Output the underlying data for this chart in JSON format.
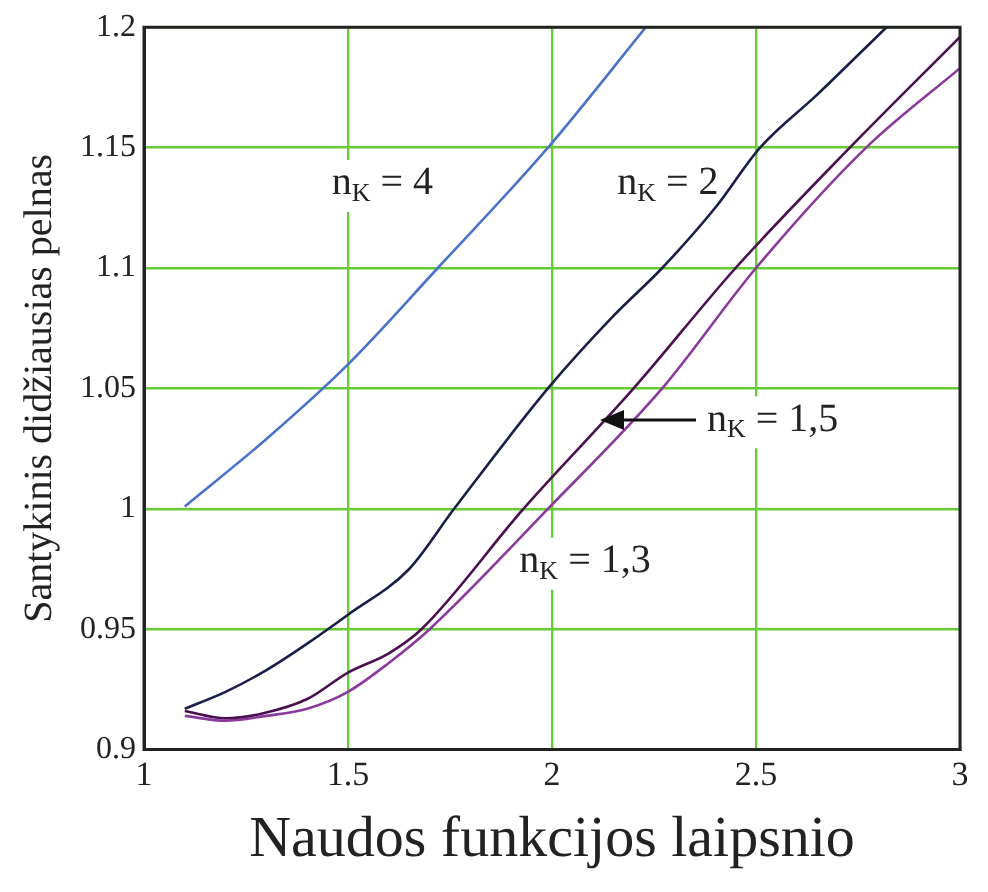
{
  "chart_data": {
    "type": "line",
    "xlabel": "Naudos funkcijos laipsnio",
    "ylabel": "Santykinis didžiausias pelnas",
    "xlim": [
      1,
      3
    ],
    "xticks": [
      1,
      1.5,
      2,
      2.5,
      3
    ],
    "ylim": [
      0.9,
      1.2
    ],
    "yticks": [
      0.9,
      0.95,
      1,
      1.05,
      1.1,
      1.15,
      1.2
    ],
    "grid": true,
    "legend": false,
    "marker": "none",
    "line_style": "solid",
    "series": [
      {
        "color": "#4a72c8",
        "x": [
          1.1,
          1.3,
          1.5,
          1.72,
          1.99,
          2.23
        ],
        "values": [
          1.001,
          1.029,
          1.06,
          1.1,
          1.15,
          1.2
        ]
      },
      {
        "color": "#1a1f4a",
        "x": [
          1.1,
          1.2,
          1.3,
          1.4,
          1.5,
          1.65,
          1.76,
          1.99,
          2.15,
          2.27,
          2.4,
          2.51,
          2.65,
          2.82
        ],
        "values": [
          0.917,
          0.924,
          0.933,
          0.944,
          0.956,
          0.975,
          1.0,
          1.05,
          1.08,
          1.1,
          1.125,
          1.15,
          1.172,
          1.2
        ]
      },
      {
        "color": "#4a1050",
        "x": [
          1.1,
          1.2,
          1.29,
          1.4,
          1.5,
          1.6,
          1.68,
          1.93,
          2.2,
          2.45,
          2.73,
          3
        ],
        "values": [
          0.916,
          0.913,
          0.915,
          0.921,
          0.932,
          0.94,
          0.95,
          1.0,
          1.05,
          1.1,
          1.15,
          1.196
        ]
      },
      {
        "color": "#8a3a9a",
        "x": [
          1.1,
          1.2,
          1.3,
          1.4,
          1.5,
          1.6,
          1.7,
          1.99,
          2.27,
          2.5,
          2.77,
          3
        ],
        "values": [
          0.914,
          0.912,
          0.914,
          0.917,
          0.924,
          0.936,
          0.95,
          1.0,
          1.05,
          1.1,
          1.15,
          1.183
        ]
      }
    ],
    "annotations": [
      "n$_{K}$ = 4",
      "n$_{K}$ = 2",
      "n$_{K}$ = 1,5",
      "n$_{K}$ = 1,3"
    ]
  }
}
